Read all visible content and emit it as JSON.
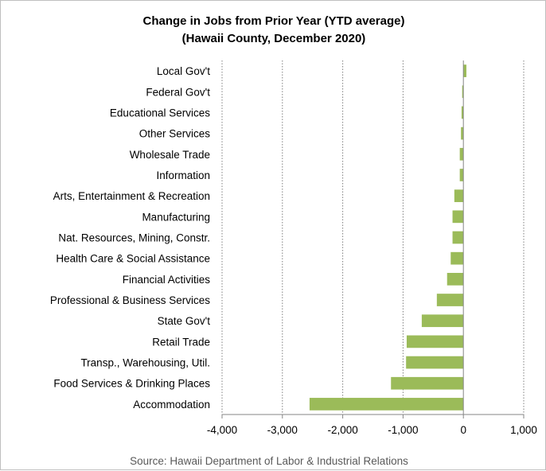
{
  "chart_data": {
    "type": "bar",
    "orientation": "horizontal",
    "title": [
      "Change in Jobs from Prior Year (YTD average)",
      "(Hawaii County, December 2020)"
    ],
    "categories": [
      "Local Gov't",
      "Federal Gov't",
      "Educational Services",
      "Other Services",
      "Wholesale Trade",
      "Information",
      "Arts, Entertainment & Recreation",
      "Manufacturing",
      "Nat. Resources, Mining, Constr.",
      "Health Care & Social Assistance",
      "Financial Activities",
      "Professional & Business Services",
      "State Gov't",
      "Retail Trade",
      "Transp., Warehousing, Util.",
      "Food Services & Drinking Places",
      "Accommodation"
    ],
    "values": [
      50,
      -20,
      -30,
      -40,
      -60,
      -60,
      -150,
      -180,
      -180,
      -210,
      -270,
      -440,
      -690,
      -940,
      -950,
      -1200,
      -2550
    ],
    "xlim": [
      -4000,
      1000
    ],
    "xticks": [
      -4000,
      -3000,
      -2000,
      -1000,
      0,
      1000
    ],
    "xtick_labels": [
      "-4,000",
      "-3,000",
      "-2,000",
      "-1,000",
      "0",
      "1,000"
    ],
    "grid": "vertical dotted",
    "bar_color": "#9bbb59",
    "source": "Source: Hawaii Department of Labor & Industrial Relations"
  }
}
